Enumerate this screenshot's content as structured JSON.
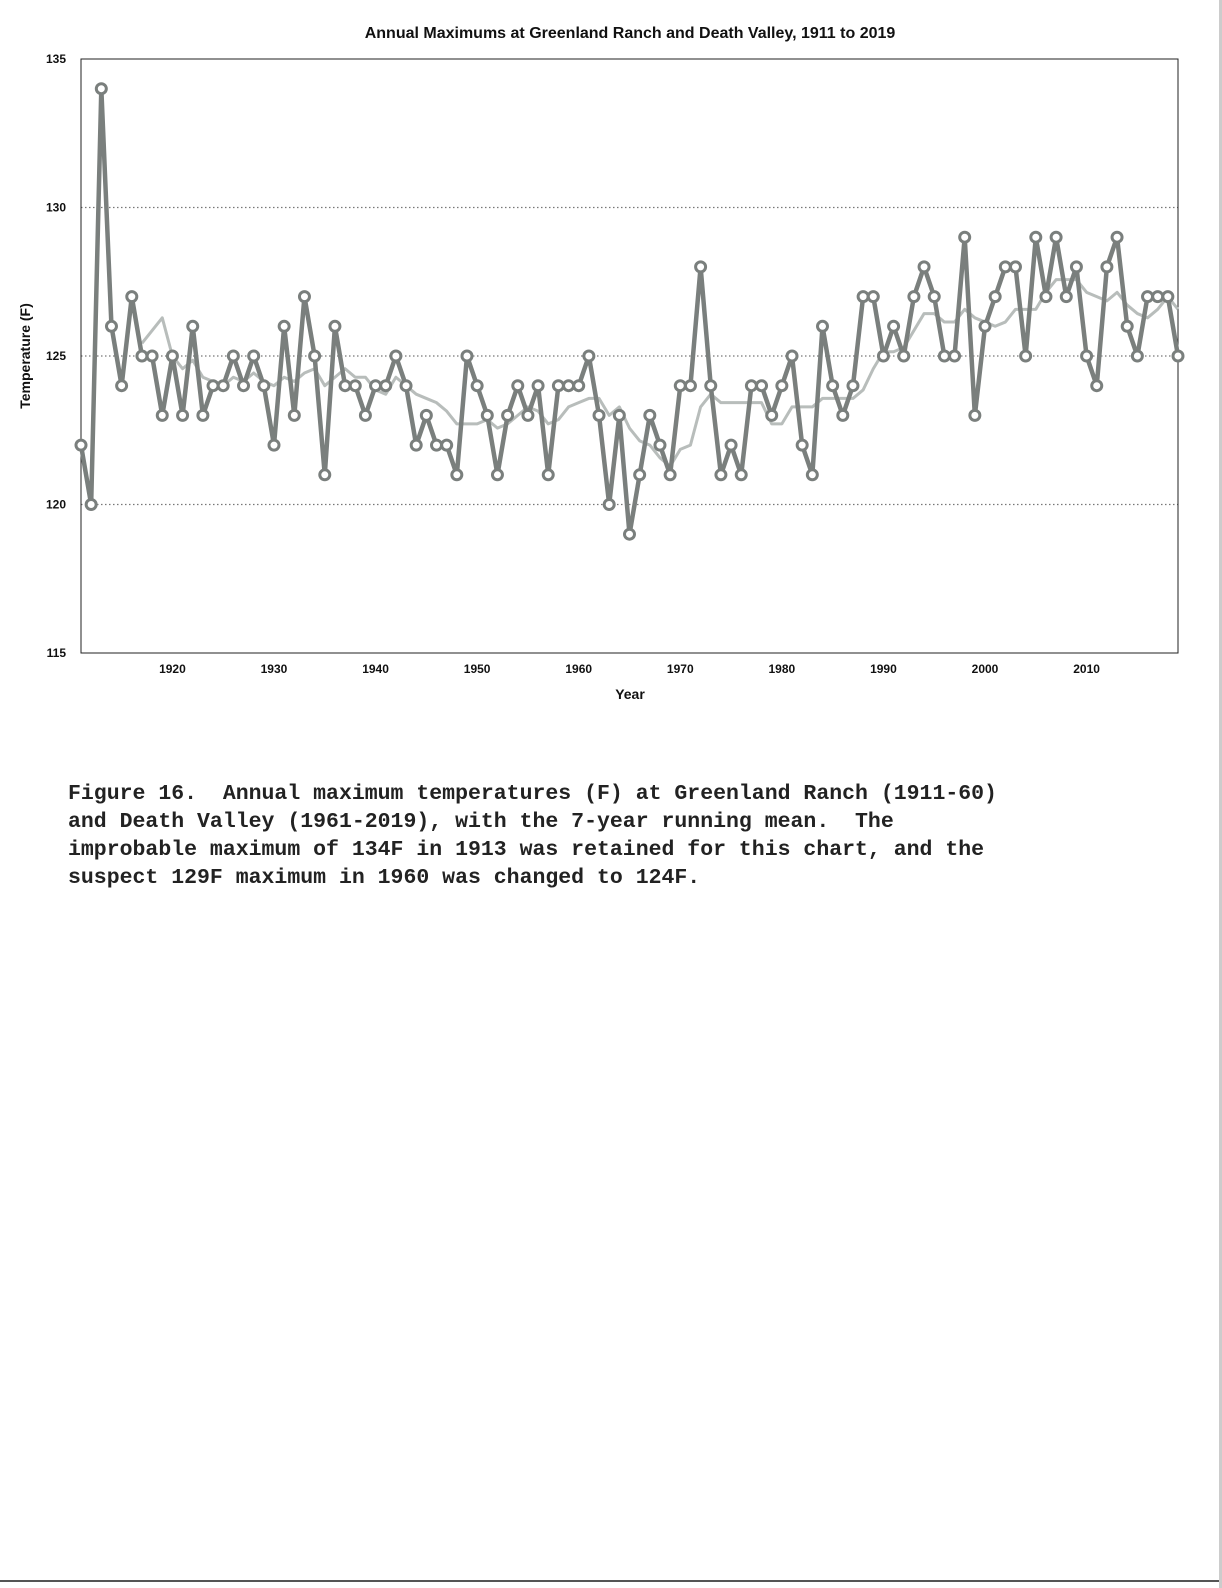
{
  "chart_data": {
    "type": "line",
    "title": "Annual Maximums at Greenland Ranch and Death Valley, 1911 to 2019",
    "xlabel": "Year",
    "ylabel": "Temperature (F)",
    "xlim": [
      1911,
      2019
    ],
    "ylim": [
      115,
      135
    ],
    "yticks": [
      115,
      120,
      125,
      130,
      135
    ],
    "xticks": [
      1920,
      1930,
      1940,
      1950,
      1960,
      1970,
      1980,
      1990,
      2000,
      2010
    ],
    "grid": "horizontal dotted",
    "series": [
      {
        "name": "Annual maximum",
        "color": "#7a7f7d",
        "start_year": 1911,
        "values": [
          122,
          120,
          134,
          126,
          124,
          127,
          125,
          125,
          123,
          125,
          123,
          126,
          123,
          124,
          124,
          125,
          124,
          125,
          124,
          122,
          126,
          123,
          127,
          125,
          121,
          126,
          124,
          124,
          123,
          124,
          124,
          125,
          124,
          122,
          123,
          122,
          122,
          121,
          125,
          124,
          123,
          121,
          123,
          124,
          123,
          124,
          121,
          124,
          124,
          124,
          125,
          123,
          120,
          123,
          119,
          121,
          123,
          122,
          121,
          124,
          124,
          128,
          124,
          121,
          122,
          121,
          124,
          124,
          123,
          124,
          125,
          122,
          121,
          126,
          124,
          123,
          124,
          127,
          127,
          125,
          126,
          125,
          127,
          128,
          127,
          125,
          125,
          129,
          123,
          126,
          127,
          128,
          128,
          125,
          129,
          127,
          129,
          127,
          128,
          125,
          124,
          128,
          129,
          126,
          125,
          127,
          127,
          127,
          125
        ]
      },
      {
        "name": "7-year running mean",
        "color": "#b8bdbb",
        "window": 7
      }
    ]
  },
  "caption": "Figure 16.  Annual maximum temperatures (F) at Greenland Ranch (1911-60)\nand Death Valley (1961-2019), with the 7-year running mean.  The\nimprobable maximum of 134F in 1913 was retained for this chart, and the\nsuspect 129F maximum in 1960 was changed to 124F."
}
